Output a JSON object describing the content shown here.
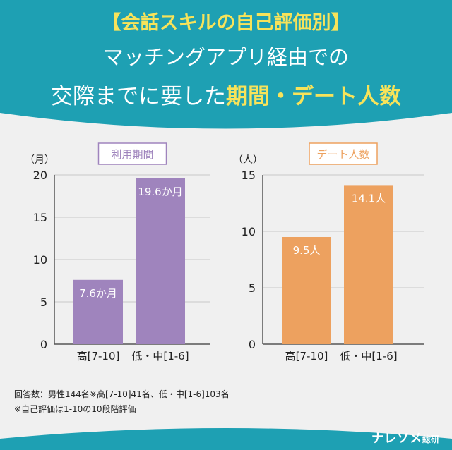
{
  "header": {
    "line1": "【会話スキルの自己評価別】",
    "line2": "マッチングアプリ経由での",
    "line3_prefix": "交際までに要した",
    "line3_highlight": "期間・デート人数"
  },
  "colors": {
    "header_bg": "#1ea0b3",
    "accent_yellow": "#f7e35a",
    "purple": "#9f84bd",
    "orange": "#eda15f"
  },
  "chart_data": [
    {
      "type": "bar",
      "title": "利用期間",
      "unit": "（月）",
      "categories": [
        "高[7-10]",
        "低・中[1-6]"
      ],
      "values": [
        7.6,
        19.6
      ],
      "value_labels": [
        "7.6か月",
        "19.6か月"
      ],
      "ylim": [
        0,
        20
      ],
      "yticks": [
        0,
        5,
        10,
        15,
        20
      ],
      "grid": true
    },
    {
      "type": "bar",
      "title": "デート人数",
      "unit": "（人）",
      "categories": [
        "高[7-10]",
        "低・中[1-6]"
      ],
      "values": [
        9.5,
        14.1
      ],
      "value_labels": [
        "9.5人",
        "14.1人"
      ],
      "ylim": [
        0,
        15
      ],
      "yticks": [
        0,
        5,
        10,
        15
      ],
      "grid": true
    }
  ],
  "notes": [
    "回答数：男性144名※高[7-10]41名、低・中[1-6]103名",
    "※自己評価は1-10の10段階評価"
  ],
  "brand": {
    "name": "ナレソメ",
    "sub": "総研"
  }
}
